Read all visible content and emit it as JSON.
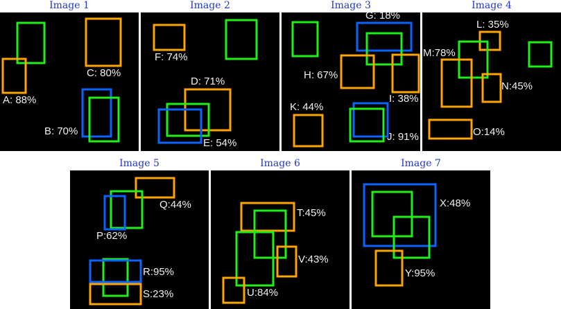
{
  "colors": {
    "green": "#1ff01a",
    "orange": "#ffa500",
    "blue": "#0a64ff"
  },
  "panels": [
    {
      "title": "Image 1",
      "boxes": [
        "green",
        "orange",
        "orange",
        "blue",
        "green"
      ],
      "labels": [
        "A: 88%",
        "C: 80%",
        "B: 70%"
      ]
    },
    {
      "title": "Image 2",
      "boxes": [
        "orange",
        "green",
        "orange",
        "green",
        "blue"
      ],
      "labels": [
        "F: 74%",
        "D: 71%",
        "E: 54%"
      ]
    },
    {
      "title": "Image 3",
      "boxes": [
        "green",
        "blue",
        "green",
        "orange",
        "orange",
        "blue",
        "green",
        "orange"
      ],
      "labels": [
        "G: 18%",
        "H: 67%",
        "I: 38%",
        "J: 91%",
        "K: 44%"
      ]
    },
    {
      "title": "Image 4",
      "boxes": [
        "orange",
        "green",
        "green",
        "orange",
        "orange",
        "orange"
      ],
      "labels": [
        "L: 35%",
        "M:78%",
        "N:45%",
        "O:14%"
      ]
    },
    {
      "title": "Image 5",
      "boxes": [
        "orange",
        "green",
        "blue",
        "green",
        "blue",
        "orange"
      ],
      "labels": [
        "Q:44%",
        "P:62%",
        "R:95%",
        "S:23%"
      ]
    },
    {
      "title": "Image 6",
      "boxes": [
        "orange",
        "green",
        "green",
        "orange",
        "orange"
      ],
      "labels": [
        "T:45%",
        "V:43%",
        "U:84%"
      ]
    },
    {
      "title": "Image 7",
      "boxes": [
        "blue",
        "green",
        "green",
        "orange"
      ],
      "labels": [
        "X:48%",
        "Y:95%"
      ]
    }
  ]
}
